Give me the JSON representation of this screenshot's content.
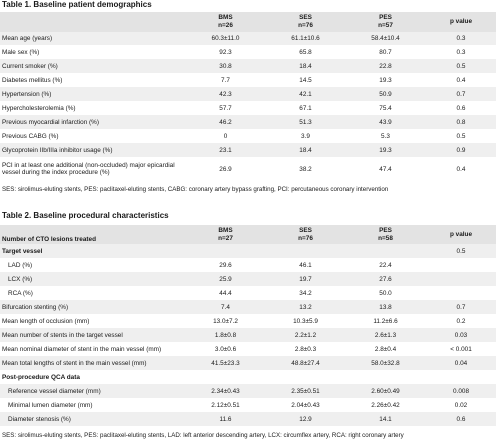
{
  "table1": {
    "title": "Table 1. Baseline patient demographics",
    "columns": [
      {
        "name": "BMS",
        "n": "n=26"
      },
      {
        "name": "SES",
        "n": "n=76"
      },
      {
        "name": "PES",
        "n": "n=57"
      },
      {
        "name": "p value",
        "n": ""
      }
    ],
    "rows": [
      {
        "label": "Mean age (years)",
        "v": [
          "60.3±11.0",
          "61.1±10.6",
          "58.4±10.4",
          "0.3"
        ]
      },
      {
        "label": "Male sex (%)",
        "v": [
          "92.3",
          "65.8",
          "80.7",
          "0.3"
        ]
      },
      {
        "label": "Current smoker (%)",
        "v": [
          "30.8",
          "18.4",
          "22.8",
          "0.5"
        ]
      },
      {
        "label": "Diabetes mellitus (%)",
        "v": [
          "7.7",
          "14.5",
          "19.3",
          "0.4"
        ]
      },
      {
        "label": "Hypertension (%)",
        "v": [
          "42.3",
          "42.1",
          "50.9",
          "0.7"
        ]
      },
      {
        "label": "Hypercholesterolemia (%)",
        "v": [
          "57.7",
          "67.1",
          "75.4",
          "0.6"
        ]
      },
      {
        "label": "Previous myocardial infarction (%)",
        "v": [
          "46.2",
          "51.3",
          "43.9",
          "0.8"
        ]
      },
      {
        "label": "Previous CABG (%)",
        "v": [
          "0",
          "3.9",
          "5.3",
          "0.5"
        ]
      },
      {
        "label": "Glycoprotein IIb/IIIa inhibitor usage (%)",
        "v": [
          "23.1",
          "18.4",
          "19.3",
          "0.9"
        ]
      },
      {
        "label": "PCI in at least one additional (non-occluded) major epicardial vessel during the index procedure (%)",
        "v": [
          "26.9",
          "38.2",
          "47.4",
          "0.4"
        ]
      }
    ],
    "note": "SES: sirolimus-eluting stents, PES: paclitaxel-eluting stents, CABG: coronary artery bypass grafting, PCI: percutaneous coronary intervention"
  },
  "table2": {
    "title": "Table 2. Baseline procedural characteristics",
    "header_label": "Number of CTO lesions treated",
    "columns": [
      {
        "name": "BMS",
        "n": "n=27"
      },
      {
        "name": "SES",
        "n": "n=76"
      },
      {
        "name": "PES",
        "n": "n=58"
      },
      {
        "name": "p value",
        "n": ""
      }
    ],
    "rows": [
      {
        "label": "Target vessel",
        "v": [
          "",
          "",
          "",
          "0.5"
        ]
      },
      {
        "label": "LAD (%)",
        "v": [
          "29.6",
          "46.1",
          "22.4",
          ""
        ]
      },
      {
        "label": "LCX (%)",
        "v": [
          "25.9",
          "19.7",
          "27.6",
          ""
        ]
      },
      {
        "label": "RCA (%)",
        "v": [
          "44.4",
          "34.2",
          "50.0",
          ""
        ]
      },
      {
        "label": "Bifurcation stenting (%)",
        "v": [
          "7.4",
          "13.2",
          "13.8",
          "0.7"
        ]
      },
      {
        "label": "Mean length of occlusion (mm)",
        "v": [
          "13.0±7.2",
          "10.3±5.9",
          "11.2±6.6",
          "0.2"
        ]
      },
      {
        "label": "Mean number of stents in the target vessel",
        "v": [
          "1.8±0.8",
          "2.2±1.2",
          "2.6±1.3",
          "0.03"
        ]
      },
      {
        "label": "Mean nominal diameter of stent in the main vessel (mm)",
        "v": [
          "3.0±0.6",
          "2.8±0.3",
          "2.8±0.4",
          "< 0.001"
        ]
      },
      {
        "label": "Mean total lengths of stent in the main vessel (mm)",
        "v": [
          "41.5±23.3",
          "48.8±27.4",
          "58.0±32.8",
          "0.04"
        ]
      },
      {
        "label": "Post-procedure QCA data",
        "v": [
          "",
          "",
          "",
          ""
        ]
      },
      {
        "label": "Reference vessel diameter (mm)",
        "v": [
          "2.34±0.43",
          "2.35±0.51",
          "2.60±0.49",
          "0.008"
        ]
      },
      {
        "label": "Minimal lumen diameter (mm)",
        "v": [
          "2.12±0.51",
          "2.04±0.43",
          "2.26±0.42",
          "0.02"
        ]
      },
      {
        "label": "Diameter stenosis (%)",
        "v": [
          "11.6",
          "12.9",
          "14.1",
          "0.6"
        ]
      }
    ],
    "note": "SES: sirolimus-eluting stents, PES: paclitaxel-eluting stents, LAD: left anterior descending artery, LCX: circumflex artery, RCA: right coronary artery"
  }
}
